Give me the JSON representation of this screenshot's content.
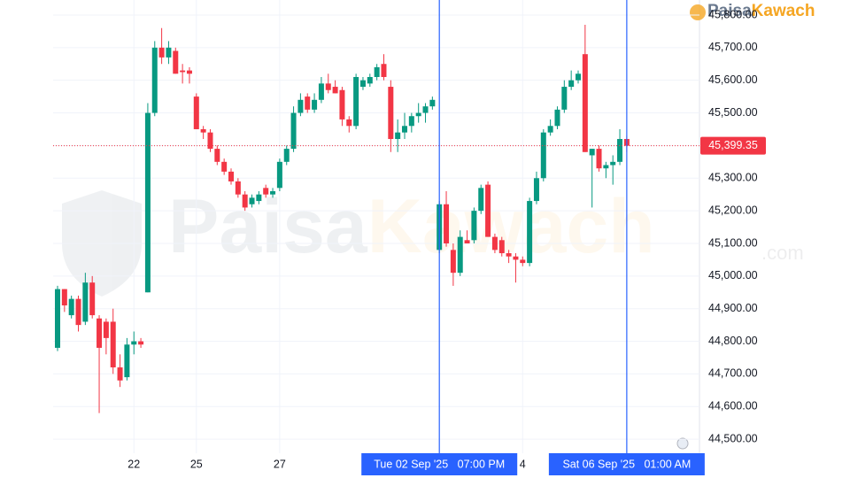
{
  "chart_data": {
    "type": "candlestick",
    "categories": [
      null,
      null,
      null,
      null,
      null,
      null,
      null,
      null,
      null,
      null,
      null,
      "22",
      null,
      null,
      null,
      null,
      null,
      null,
      null,
      null,
      "25",
      null,
      null,
      null,
      null,
      null,
      null,
      null,
      null,
      null,
      null,
      null,
      "27",
      null,
      null,
      null,
      null,
      null,
      null,
      null,
      null,
      null,
      null,
      null,
      null,
      null,
      null,
      null,
      null,
      null,
      null,
      null,
      null,
      null,
      null,
      "Tue 02 Sep '25   07:00 PM",
      null,
      null,
      null,
      null,
      null,
      null,
      null,
      null,
      null,
      null,
      null,
      "4",
      null,
      null,
      null,
      null,
      null,
      null,
      null,
      null,
      null,
      null,
      null,
      null,
      null,
      null,
      "Sat 06 Sep '25   01:00 AM"
    ],
    "crosshairs": [
      55,
      82
    ],
    "open": [
      44780,
      44960,
      44880,
      44930,
      44860,
      44980,
      44870,
      44860,
      44860,
      44720,
      44690,
      44790,
      44800,
      44950,
      45500,
      45700,
      45670,
      45690,
      45630,
      45630,
      45550,
      45450,
      45440,
      45390,
      45350,
      45320,
      45290,
      45250,
      45220,
      45230,
      45270,
      45250,
      45270,
      45350,
      45390,
      45500,
      45550,
      45510,
      45540,
      45590,
      45580,
      45570,
      45480,
      45460,
      45580,
      45590,
      45610,
      45650,
      45580,
      45420,
      45440,
      45460,
      45490,
      45500,
      45520,
      45080,
      45220,
      45080,
      45010,
      45110,
      45110,
      45200,
      45280,
      45120,
      45110,
      45070,
      45060,
      45050,
      45040,
      45230,
      45300,
      45440,
      45460,
      45510,
      45580,
      45600,
      45680,
      45370,
      45390,
      45330,
      45340,
      45350,
      45420
    ],
    "high": [
      44970,
      44960,
      44940,
      44940,
      45010,
      45000,
      44880,
      44870,
      44900,
      44760,
      44810,
      44830,
      44810,
      45530,
      45720,
      45760,
      45720,
      45700,
      45650,
      45640,
      45560,
      45460,
      45450,
      45400,
      45360,
      45330,
      45300,
      45260,
      45250,
      45260,
      45280,
      45270,
      45360,
      45400,
      45520,
      45560,
      45560,
      45560,
      45610,
      45620,
      45600,
      45580,
      45490,
      45620,
      45610,
      45620,
      45650,
      45680,
      45600,
      45480,
      45500,
      45500,
      45530,
      45530,
      45550,
      45230,
      45260,
      45100,
      45140,
      45140,
      45210,
      45280,
      45290,
      45130,
      45120,
      45080,
      45070,
      45060,
      45240,
      45320,
      45450,
      45480,
      45520,
      45600,
      45630,
      45630,
      45770,
      45390,
      45400,
      45350,
      45370,
      45450,
      45430
    ],
    "low": [
      44770,
      44890,
      44870,
      44830,
      44850,
      44870,
      44580,
      44760,
      44700,
      44660,
      44680,
      44760,
      44780,
      44950,
      45490,
      45650,
      45650,
      45620,
      45590,
      45590,
      45450,
      45420,
      45380,
      45340,
      45310,
      45280,
      45240,
      45200,
      45210,
      45220,
      45240,
      45240,
      45260,
      45340,
      45380,
      45490,
      45500,
      45500,
      45530,
      45560,
      45560,
      45460,
      45440,
      45450,
      45570,
      45580,
      45600,
      45600,
      45380,
      45380,
      45420,
      45440,
      45470,
      45470,
      45510,
      45070,
      45090,
      44970,
      45000,
      45100,
      45100,
      45190,
      45120,
      45070,
      45060,
      45040,
      44980,
      45030,
      45030,
      45220,
      45290,
      45430,
      45450,
      45500,
      45570,
      45590,
      45380,
      45210,
      45320,
      45300,
      45280,
      45340,
      45380
    ],
    "close": [
      44960,
      44910,
      44930,
      44850,
      44980,
      44880,
      44780,
      44810,
      44720,
      44680,
      44790,
      44800,
      44790,
      45500,
      45700,
      45670,
      45700,
      45620,
      45625,
      45620,
      45450,
      45440,
      45390,
      45350,
      45320,
      45290,
      45250,
      45210,
      45240,
      45250,
      45250,
      45260,
      45350,
      45390,
      45500,
      45540,
      45510,
      45540,
      45590,
      45570,
      45560,
      45480,
      45460,
      45610,
      45600,
      45610,
      45640,
      45610,
      45420,
      45440,
      45460,
      45490,
      45500,
      45520,
      45540,
      45220,
      45100,
      45010,
      45120,
      45100,
      45200,
      45270,
      45120,
      45080,
      45070,
      45060,
      45050,
      45040,
      45230,
      45300,
      45440,
      45460,
      45510,
      45580,
      45600,
      45620,
      45380,
      45390,
      45330,
      45340,
      45350,
      45420,
      45399.35
    ],
    "last_label": "45,399.35",
    "up_color": "#089981",
    "down_color": "#f23645",
    "crosshair_color": "#2962ff",
    "ylim": [
      44457,
      45846
    ],
    "yticks": [
      {
        "value": 44500,
        "label": "44,500.00"
      },
      {
        "value": 44600,
        "label": "44,600.00"
      },
      {
        "value": 44700,
        "label": "44,700.00"
      },
      {
        "value": 44800,
        "label": "44,800.00"
      },
      {
        "value": 44900,
        "label": "44,900.00"
      },
      {
        "value": 45000,
        "label": "45,000.00"
      },
      {
        "value": 45100,
        "label": "45,100.00"
      },
      {
        "value": 45200,
        "label": "45,200.00"
      },
      {
        "value": 45300,
        "label": "45,300.00"
      },
      {
        "value": 45400,
        "label": "45,400.00"
      },
      {
        "value": 45500,
        "label": "45,500.00"
      },
      {
        "value": 45600,
        "label": "45,600.00"
      },
      {
        "value": 45700,
        "label": "45,700.00"
      },
      {
        "value": 45800,
        "label": "45,800.00"
      }
    ],
    "grid": true,
    "watermark": [
      "Paisa",
      "Kawach"
    ],
    "watermark_suffix": ".com",
    "logo": [
      "Paisa",
      "Kawach"
    ]
  }
}
